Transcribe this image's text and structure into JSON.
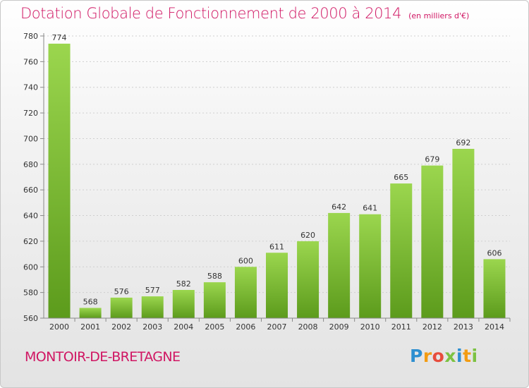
{
  "title": "Dotation Globale de Fonctionnement de 2000 à 2014",
  "subtitle": "(en milliers d'€)",
  "commune": "MONTOIR-DE-BRETAGNE",
  "logo": {
    "letters": [
      "P",
      "r",
      "o",
      "x",
      "i",
      "t",
      "i"
    ],
    "colors": [
      "#2e8fd0",
      "#f39c12",
      "#e74c3c",
      "#7cc242",
      "#2e8fd0",
      "#f39c12",
      "#7cc242"
    ]
  },
  "colors": {
    "bar_light": "#9bd64e",
    "bar_dark": "#5c9b1c",
    "accent": "#d01663"
  },
  "chart_data": {
    "type": "bar",
    "title": "Dotation Globale de Fonctionnement de 2000 à 2014",
    "subtitle": "(en milliers d'€)",
    "categories": [
      "2000",
      "2001",
      "2002",
      "2003",
      "2004",
      "2005",
      "2006",
      "2007",
      "2008",
      "2009",
      "2010",
      "2011",
      "2012",
      "2013",
      "2014"
    ],
    "values": [
      774,
      568,
      576,
      577,
      582,
      588,
      600,
      611,
      620,
      642,
      641,
      665,
      679,
      692,
      606
    ],
    "ylim": [
      560,
      780
    ],
    "yticks": [
      560,
      580,
      600,
      620,
      640,
      660,
      680,
      700,
      720,
      740,
      760,
      780
    ],
    "grid": true
  }
}
